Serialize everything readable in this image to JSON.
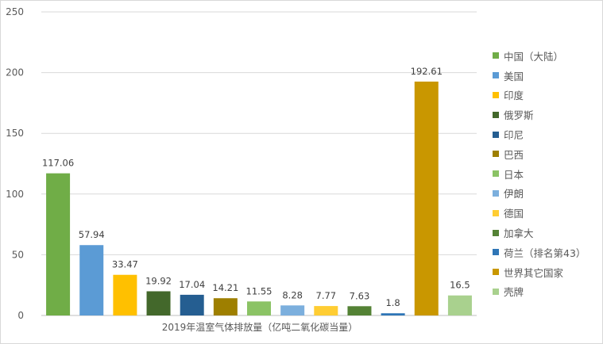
{
  "chart_data": {
    "type": "bar",
    "xlabel": "2019年温室气体排放量（亿吨二氧化碳当量）",
    "ylabel": "",
    "ylim": [
      0,
      250
    ],
    "yticks": [
      0,
      50,
      100,
      150,
      200,
      250
    ],
    "grid": true,
    "legend_position": "right",
    "categories": [
      "中国（大陆）",
      "美国",
      "印度",
      "俄罗斯",
      "印尼",
      "巴西",
      "日本",
      "伊朗",
      "德国",
      "加拿大",
      "荷兰（排名第43）",
      "世界其它国家",
      "壳牌"
    ],
    "values": [
      117.06,
      57.94,
      33.47,
      19.92,
      17.04,
      14.21,
      11.55,
      8.28,
      7.77,
      7.63,
      1.8,
      192.61,
      16.5
    ],
    "value_labels": [
      "117.06",
      "57.94",
      "33.47",
      "19.92",
      "17.04",
      "14.21",
      "11.55",
      "8.28",
      "7.77",
      "7.63",
      "1.8",
      "192.61",
      "16.5"
    ],
    "colors": [
      "#70AD47",
      "#5B9BD5",
      "#FFC000",
      "#43682B",
      "#255E91",
      "#9E7F00",
      "#8BC365",
      "#7CAFDD",
      "#FFCD33",
      "#548235",
      "#2E75B6",
      "#C99700",
      "#A9D18E"
    ]
  }
}
